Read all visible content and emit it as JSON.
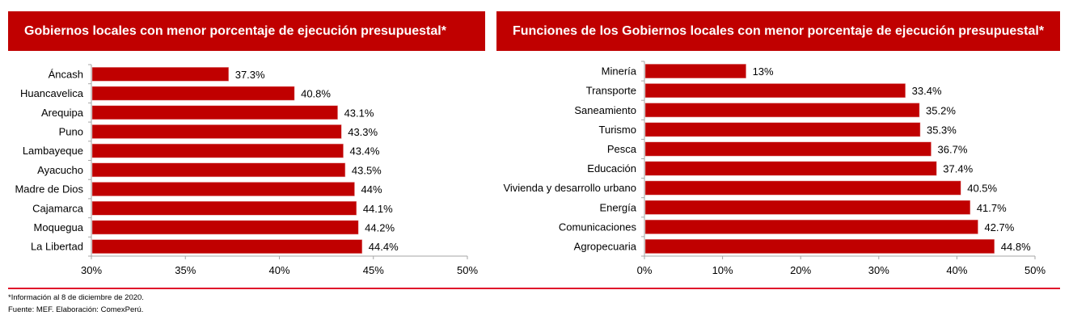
{
  "chart_data": [
    {
      "type": "bar",
      "orientation": "horizontal",
      "title": "Gobiernos locales con menor porcentaje de ejecución presupuestal*",
      "categories": [
        "Áncash",
        "Huancavelica",
        "Arequipa",
        "Puno",
        "Lambayeque",
        "Ayacucho",
        "Madre de Dios",
        "Cajamarca",
        "Moquegua",
        "La Libertad"
      ],
      "values": [
        37.3,
        40.8,
        43.1,
        43.3,
        43.4,
        43.5,
        44,
        44.1,
        44.2,
        44.4
      ],
      "data_labels": [
        "37.3%",
        "40.8%",
        "43.1%",
        "43.3%",
        "43.4%",
        "43.5%",
        "44%",
        "44.1%",
        "44.2%",
        "44.4%"
      ],
      "xlim": [
        30,
        50
      ],
      "xticks": [
        30,
        35,
        40,
        45,
        50
      ],
      "xtick_labels": [
        "30%",
        "35%",
        "40%",
        "45%",
        "50%"
      ],
      "xlabel": "",
      "ylabel": "",
      "grid": false,
      "bar_color": "#c00000"
    },
    {
      "type": "bar",
      "orientation": "horizontal",
      "title": "Funciones de los Gobiernos locales con menor porcentaje de ejecución presupuestal*",
      "categories": [
        "Minería",
        "Transporte",
        "Saneamiento",
        "Turismo",
        "Pesca",
        "Educación",
        "Vivienda y desarrollo urbano",
        "Energía",
        "Comunicaciones",
        "Agropecuaria"
      ],
      "values": [
        13,
        33.4,
        35.2,
        35.3,
        36.7,
        37.4,
        40.5,
        41.7,
        42.7,
        44.8
      ],
      "data_labels": [
        "13%",
        "33.4%",
        "35.2%",
        "35.3%",
        "36.7%",
        "37.4%",
        "40.5%",
        "41.7%",
        "42.7%",
        "44.8%"
      ],
      "xlim": [
        0,
        50
      ],
      "xticks": [
        0,
        10,
        20,
        30,
        40,
        50
      ],
      "xtick_labels": [
        "0%",
        "10%",
        "20%",
        "30%",
        "40%",
        "50%"
      ],
      "xlabel": "",
      "ylabel": "",
      "grid": false,
      "bar_color": "#c00000"
    }
  ],
  "footer": {
    "note": "*Información al 8 de diciembre de 2020.",
    "source": "Fuente: MEF. Elaboración: ComexPerú."
  },
  "colors": {
    "header_bg": "#c00000",
    "divider": "#e0102a"
  }
}
